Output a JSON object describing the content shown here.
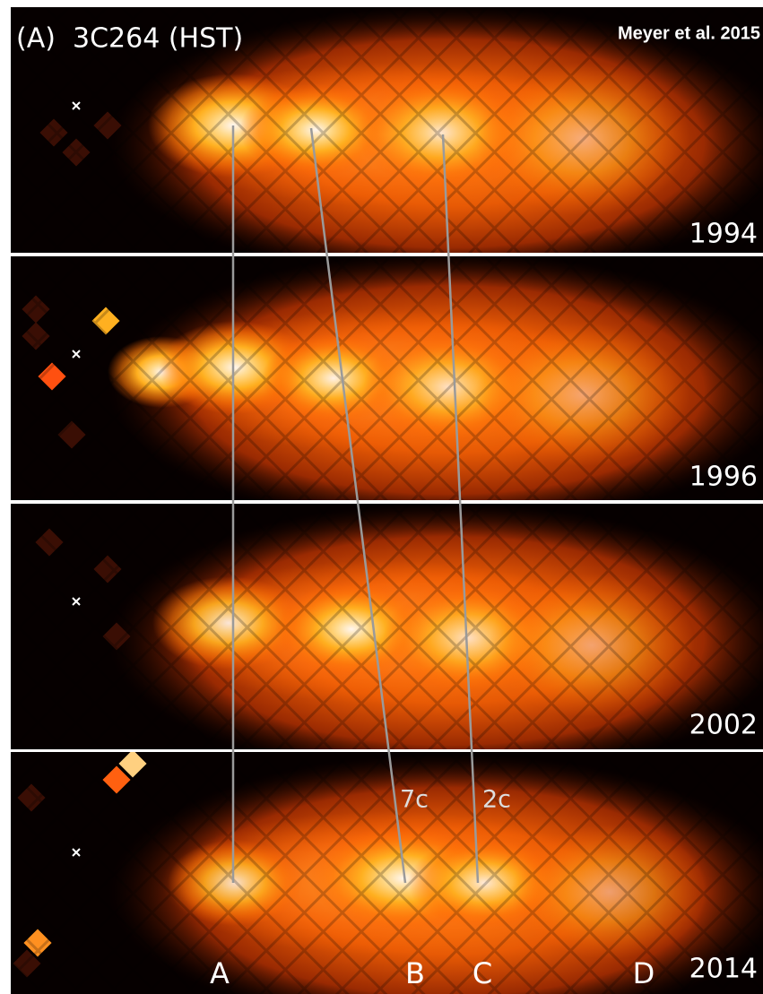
{
  "header": {
    "title": "(A)  3C264 (HST)",
    "credit": "Meyer et al. 2015"
  },
  "panels": [
    {
      "year": "1994"
    },
    {
      "year": "1996"
    },
    {
      "year": "2002"
    },
    {
      "year": "2014"
    }
  ],
  "speeds": [
    "7c",
    "2c"
  ],
  "knots": [
    "A",
    "B",
    "C",
    "D"
  ]
}
